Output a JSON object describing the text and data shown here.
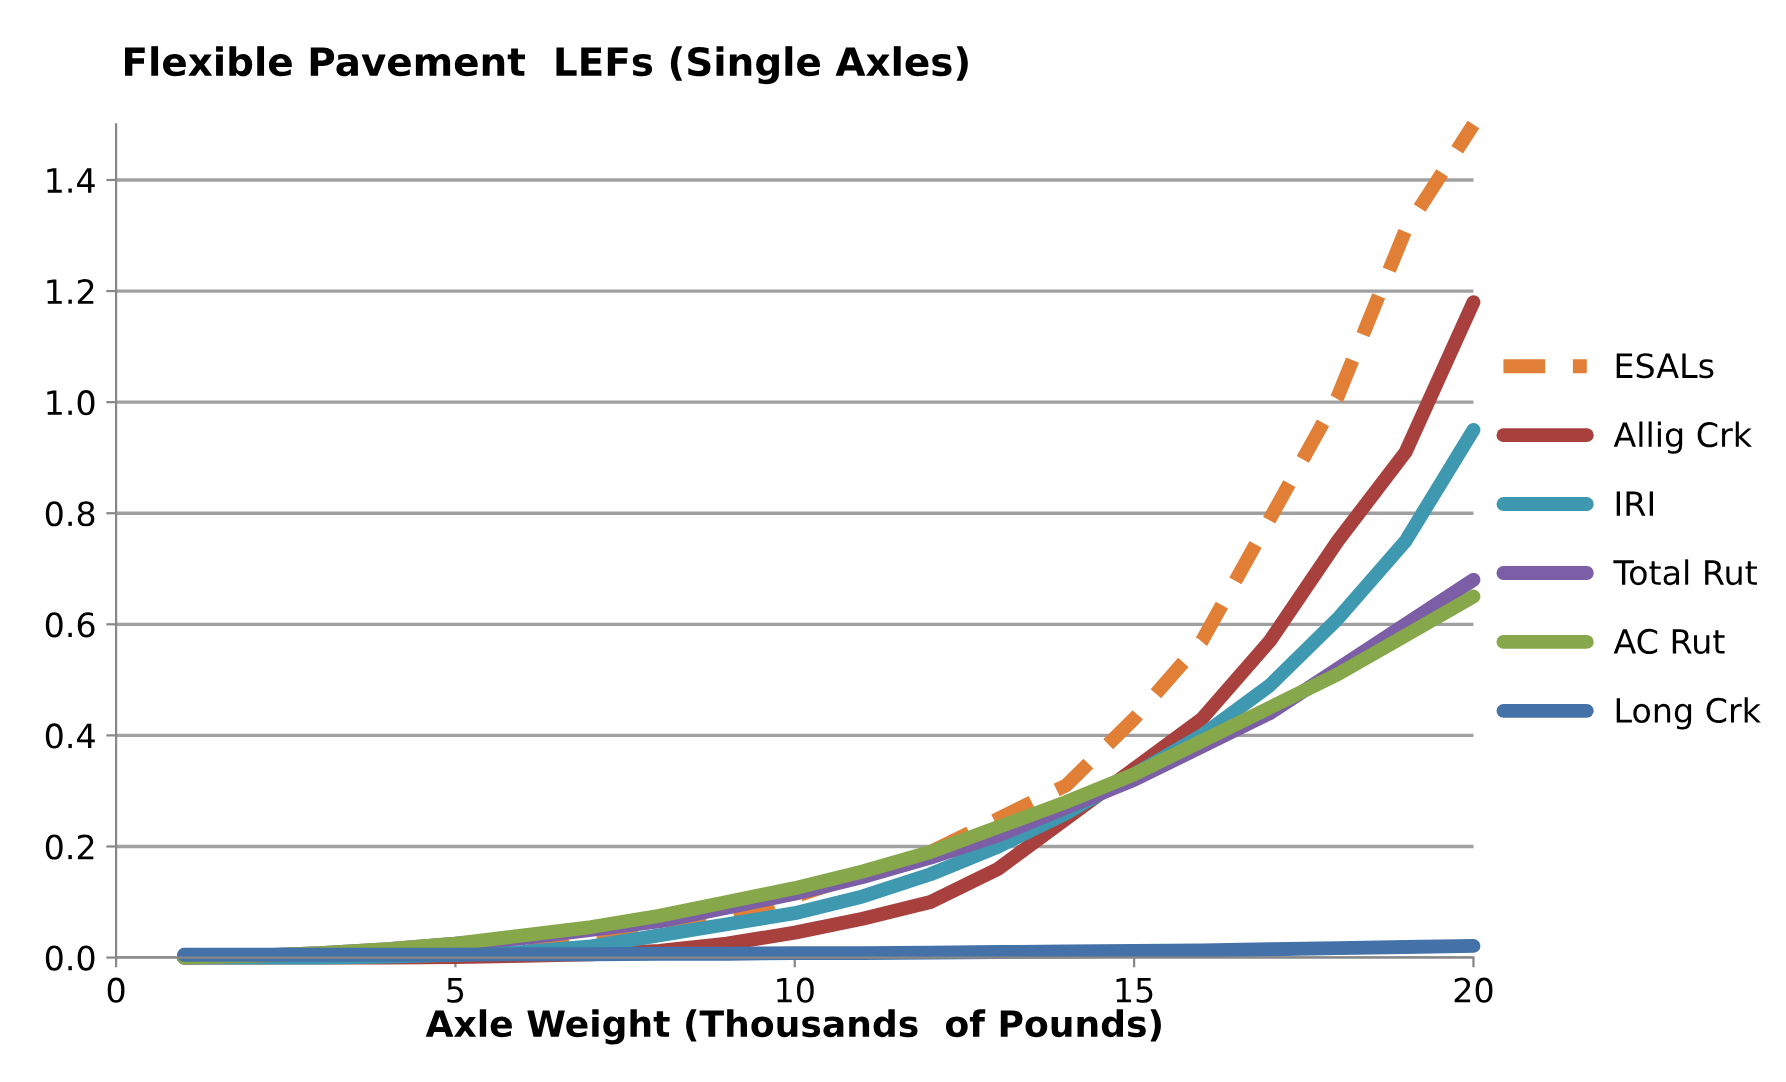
{
  "chart_data": {
    "type": "line",
    "title": "Flexible Pavement  LEFs (Single Axles)",
    "xlabel": "Axle Weight (Thousands  of Pounds)",
    "x": [
      1,
      2,
      3,
      4,
      5,
      6,
      7,
      8,
      9,
      10,
      11,
      12,
      13,
      14,
      15,
      16,
      17,
      18,
      19,
      20
    ],
    "xlim": [
      0,
      20
    ],
    "xticks": [
      0,
      5,
      10,
      15,
      20
    ],
    "ylim": [
      0,
      1.5
    ],
    "yticks": [
      {
        "value": 0,
        "label": "0.0"
      },
      0.2,
      0.4,
      0.6,
      0.8,
      {
        "value": 1,
        "label": "1.0"
      },
      1.2,
      1.4
    ],
    "grid": "y",
    "legend": "right",
    "marker": "none",
    "series": [
      {
        "name": "ESALs",
        "color": "#e07f35",
        "line_style": "dashed",
        "values": [
          null,
          null,
          0.002,
          0.006,
          0.012,
          0.02,
          0.035,
          0.05,
          0.075,
          0.11,
          0.15,
          0.19,
          0.25,
          0.31,
          0.43,
          0.57,
          0.79,
          1.01,
          1.31,
          1.5
        ]
      },
      {
        "name": "Allig Crk",
        "color": "#a8403d",
        "values": [
          0,
          0,
          0,
          0,
          0.001,
          0.003,
          0.006,
          0.012,
          0.025,
          0.045,
          0.07,
          0.1,
          0.16,
          0.25,
          0.34,
          0.43,
          0.57,
          0.75,
          0.91,
          1.18
        ]
      },
      {
        "name": "IRI",
        "color": "#3d98b0",
        "values": [
          0,
          0,
          0,
          0.002,
          0.005,
          0.01,
          0.02,
          0.04,
          0.06,
          0.08,
          0.11,
          0.15,
          0.2,
          0.26,
          0.33,
          0.4,
          0.49,
          0.61,
          0.75,
          0.95
        ]
      },
      {
        "name": "Total Rut",
        "color": "#7b5ea5",
        "values": [
          0,
          0.003,
          0.008,
          0.015,
          0.025,
          0.035,
          0.05,
          0.065,
          0.09,
          0.115,
          0.145,
          0.18,
          0.22,
          0.27,
          0.32,
          0.38,
          0.44,
          0.52,
          0.6,
          0.68
        ]
      },
      {
        "name": "AC Rut",
        "color": "#86a84a",
        "values": [
          0,
          0.003,
          0.008,
          0.015,
          0.025,
          0.04,
          0.055,
          0.075,
          0.1,
          0.125,
          0.155,
          0.19,
          0.235,
          0.28,
          0.33,
          0.39,
          0.45,
          0.51,
          0.58,
          0.65
        ]
      },
      {
        "name": "Long Crk",
        "color": "#4472a8",
        "values": [
          0.005,
          0.005,
          0.005,
          0.005,
          0.005,
          0.006,
          0.006,
          0.007,
          0.007,
          0.008,
          0.008,
          0.009,
          0.01,
          0.011,
          0.012,
          0.013,
          0.015,
          0.017,
          0.019,
          0.021
        ]
      }
    ]
  }
}
